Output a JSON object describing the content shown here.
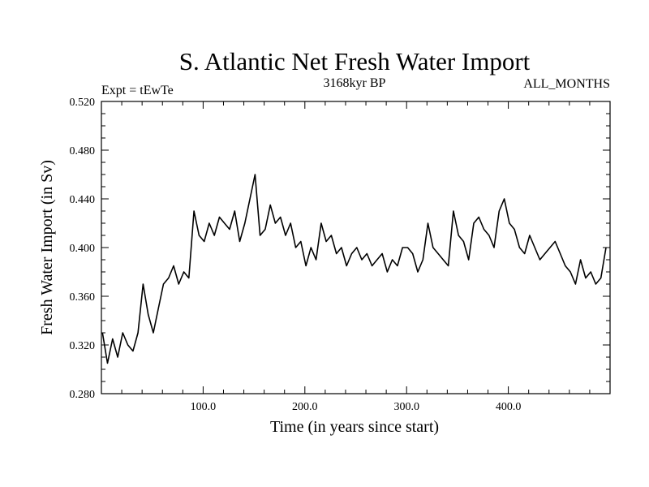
{
  "chart_data": {
    "type": "line",
    "title": "S. Atlantic Net Fresh Water Import",
    "subtitle": "3168kyr BP",
    "left_label": "Expt = tEwTe",
    "right_label": "ALL_MONTHS",
    "xlabel": "Time (in years since start)",
    "ylabel": "Fresh Water Import (in Sv)",
    "xlim": [
      0,
      500
    ],
    "ylim": [
      0.28,
      0.52
    ],
    "x_ticks": [
      100,
      200,
      300,
      400
    ],
    "x_tick_labels": [
      "100.0",
      "200.0",
      "300.0",
      "400.0"
    ],
    "y_ticks": [
      0.28,
      0.32,
      0.36,
      0.4,
      0.44,
      0.48,
      0.52
    ],
    "y_tick_labels": [
      "0.280",
      "0.320",
      "0.360",
      "0.400",
      "0.440",
      "0.480",
      "0.520"
    ],
    "grid": false,
    "series": [
      {
        "name": "Fresh Water Import",
        "color": "#000000",
        "x_start": 1,
        "x_step": 5,
        "values": [
          0.33,
          0.305,
          0.325,
          0.31,
          0.33,
          0.32,
          0.315,
          0.33,
          0.37,
          0.345,
          0.33,
          0.35,
          0.37,
          0.375,
          0.385,
          0.37,
          0.38,
          0.375,
          0.43,
          0.41,
          0.405,
          0.42,
          0.41,
          0.425,
          0.42,
          0.415,
          0.43,
          0.405,
          0.42,
          0.44,
          0.46,
          0.41,
          0.415,
          0.435,
          0.42,
          0.425,
          0.41,
          0.42,
          0.4,
          0.405,
          0.385,
          0.4,
          0.39,
          0.42,
          0.405,
          0.41,
          0.395,
          0.4,
          0.385,
          0.395,
          0.4,
          0.39,
          0.395,
          0.385,
          0.39,
          0.395,
          0.38,
          0.39,
          0.385,
          0.4,
          0.4,
          0.395,
          0.38,
          0.39,
          0.42,
          0.4,
          0.395,
          0.39,
          0.385,
          0.43,
          0.41,
          0.405,
          0.39,
          0.42,
          0.425,
          0.415,
          0.41,
          0.4,
          0.43,
          0.44,
          0.42,
          0.415,
          0.4,
          0.395,
          0.41,
          0.4,
          0.39,
          0.395,
          0.4,
          0.405,
          0.395,
          0.385,
          0.38,
          0.37,
          0.39,
          0.375,
          0.38,
          0.37,
          0.375,
          0.4
        ]
      }
    ]
  }
}
